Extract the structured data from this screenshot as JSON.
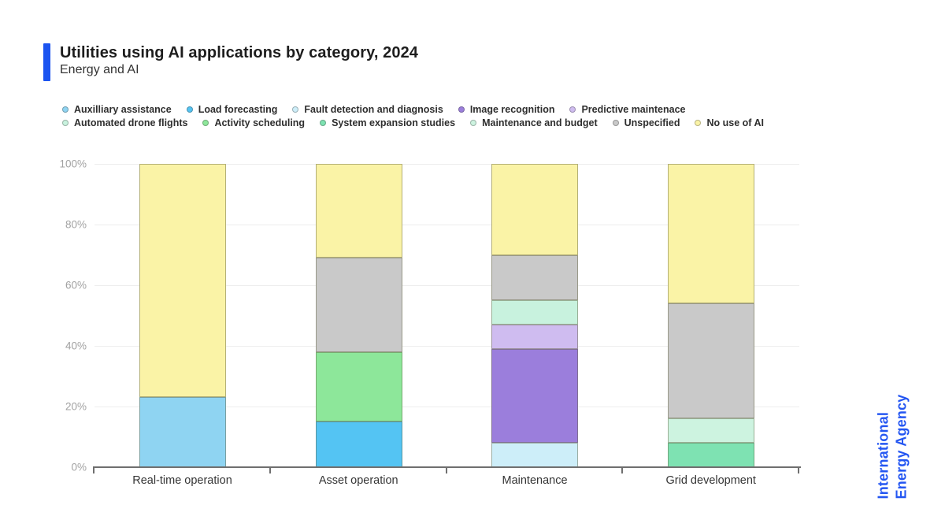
{
  "header": {
    "title": "Utilities using AI applications by category, 2024",
    "subtitle": "Energy and AI",
    "accent_color": "#1b54f0"
  },
  "legend": {
    "rows": [
      [
        "Auxilliary assistance",
        "Load forecasting",
        "Fault detection and diagnosis",
        "Image recognition",
        "Predictive maintenace"
      ],
      [
        "Automated drone flights",
        "Activity scheduling",
        "System expansion studies",
        "Maintenance and budget",
        "Unspecified",
        "No use of AI"
      ]
    ]
  },
  "chart_data": {
    "type": "bar",
    "stacked": true,
    "title": "Utilities using AI applications by category, 2024",
    "xlabel": "",
    "ylabel": "",
    "ylim": [
      0,
      100
    ],
    "yticks": [
      "0%",
      "20%",
      "40%",
      "60%",
      "80%",
      "100%"
    ],
    "grid": true,
    "legend_position": "top",
    "categories": [
      "Real-time operation",
      "Asset operation",
      "Maintenance",
      "Grid development"
    ],
    "series": [
      {
        "name": "Auxilliary assistance",
        "color": "#8fd4f2",
        "values": [
          23,
          0,
          0,
          0
        ]
      },
      {
        "name": "Load forecasting",
        "color": "#54c4f3",
        "values": [
          0,
          15,
          0,
          0
        ]
      },
      {
        "name": "Fault detection and diagnosis",
        "color": "#cdeef9",
        "values": [
          0,
          0,
          8,
          0
        ]
      },
      {
        "name": "Image recognition",
        "color": "#9b7edc",
        "values": [
          0,
          0,
          31,
          0
        ]
      },
      {
        "name": "Predictive maintenace",
        "color": "#cfbcf0",
        "values": [
          0,
          0,
          8,
          0
        ]
      },
      {
        "name": "Automated drone flights",
        "color": "#c8f2de",
        "values": [
          0,
          0,
          8,
          0
        ]
      },
      {
        "name": "Activity scheduling",
        "color": "#8de79a",
        "values": [
          0,
          23,
          0,
          0
        ]
      },
      {
        "name": "System expansion studies",
        "color": "#7ee2b2",
        "values": [
          0,
          0,
          0,
          8
        ]
      },
      {
        "name": "Maintenance and budget",
        "color": "#cdf3e0",
        "values": [
          0,
          0,
          0,
          8
        ]
      },
      {
        "name": "Unspecified",
        "color": "#c9c9c9",
        "values": [
          0,
          31,
          15,
          38
        ]
      },
      {
        "name": "No use of AI",
        "color": "#faf3a6",
        "values": [
          77,
          31,
          30,
          46
        ]
      }
    ]
  },
  "watermark": {
    "line1": "International",
    "line2": "Energy Agency",
    "color": "#2456f2"
  }
}
